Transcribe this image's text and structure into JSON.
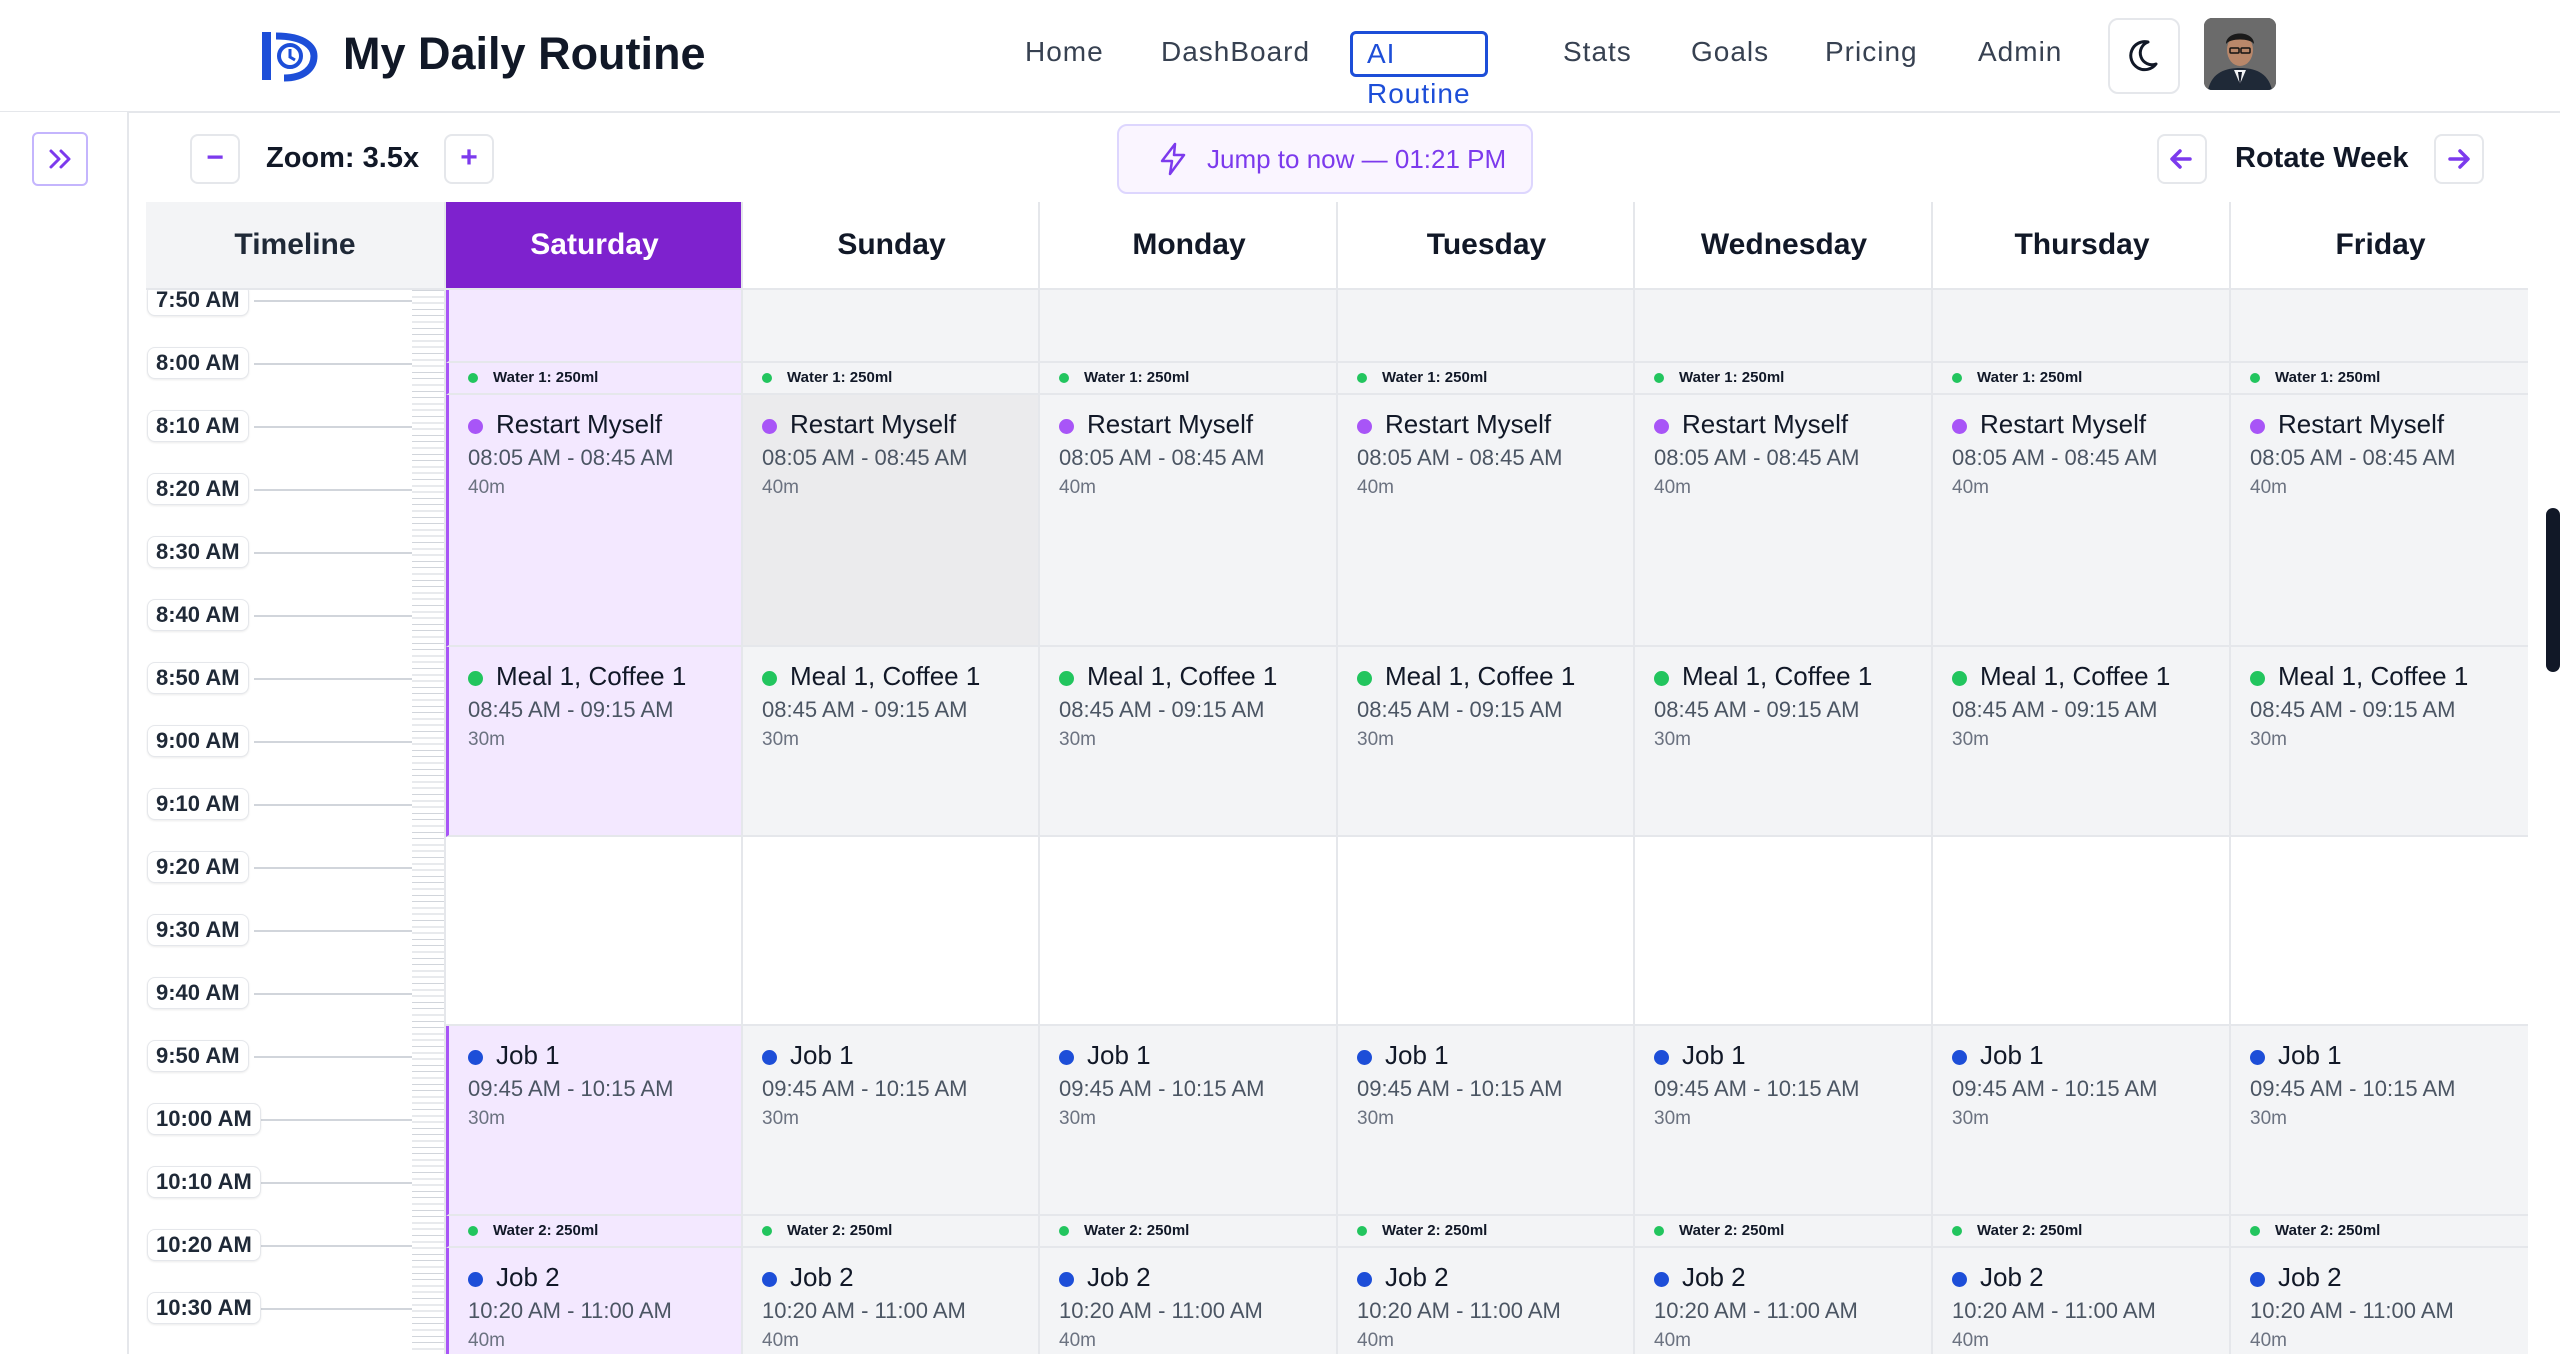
{
  "app": {
    "title": "My Daily Routine"
  },
  "nav": {
    "items": [
      {
        "label": "Home"
      },
      {
        "label": "DashBoard"
      },
      {
        "label": "AI Routine",
        "active": true
      },
      {
        "label": "Stats"
      },
      {
        "label": "Goals"
      },
      {
        "label": "Pricing"
      },
      {
        "label": "Admin"
      }
    ],
    "theme_icon": "moon-icon",
    "avatar_icon": "user-avatar"
  },
  "toolbar": {
    "zoom_out": "−",
    "zoom_label": "Zoom: 3.5x",
    "zoom_in": "+",
    "jump_label": "Jump to now — 01:21 PM",
    "jump_icon": "lightning-icon",
    "rotate_label": "Rotate Week",
    "prev_icon": "arrow-left-icon",
    "next_icon": "arrow-right-icon",
    "expand_icon": "chevrons-right-icon"
  },
  "grid": {
    "timeline_header": "Timeline",
    "days": [
      "Saturday",
      "Sunday",
      "Monday",
      "Tuesday",
      "Wednesday",
      "Thursday",
      "Friday"
    ],
    "today": "Saturday",
    "ticks": [
      "7:50 AM",
      "8:00 AM",
      "8:10 AM",
      "8:20 AM",
      "8:30 AM",
      "8:40 AM",
      "8:50 AM",
      "9:00 AM",
      "9:10 AM",
      "9:20 AM",
      "9:30 AM",
      "9:40 AM",
      "9:50 AM",
      "10:00 AM",
      "10:10 AM",
      "10:20 AM",
      "10:30 AM"
    ],
    "events": [
      {
        "kind": "water",
        "label": "Water 1: 250ml"
      },
      {
        "kind": "event",
        "title": "Restart Myself",
        "time": "08:05 AM - 08:45 AM",
        "duration": "40m",
        "color": "#a855f7"
      },
      {
        "kind": "event",
        "title": "Meal 1, Coffee 1",
        "time": "08:45 AM - 09:15 AM",
        "duration": "30m",
        "color": "#22c55e"
      },
      {
        "kind": "event",
        "title": "Job 1",
        "time": "09:45 AM - 10:15 AM",
        "duration": "30m",
        "color": "#1d4ed8"
      },
      {
        "kind": "water",
        "label": "Water 2: 250ml"
      },
      {
        "kind": "event",
        "title": "Job 2",
        "time": "10:20 AM - 11:00 AM",
        "duration": "40m",
        "color": "#1d4ed8"
      }
    ]
  },
  "colors": {
    "accent": "#7e22ce",
    "today_bg": "#f3e8ff",
    "nav_active": "#1d4ed8",
    "water_dot": "#22c55e"
  }
}
